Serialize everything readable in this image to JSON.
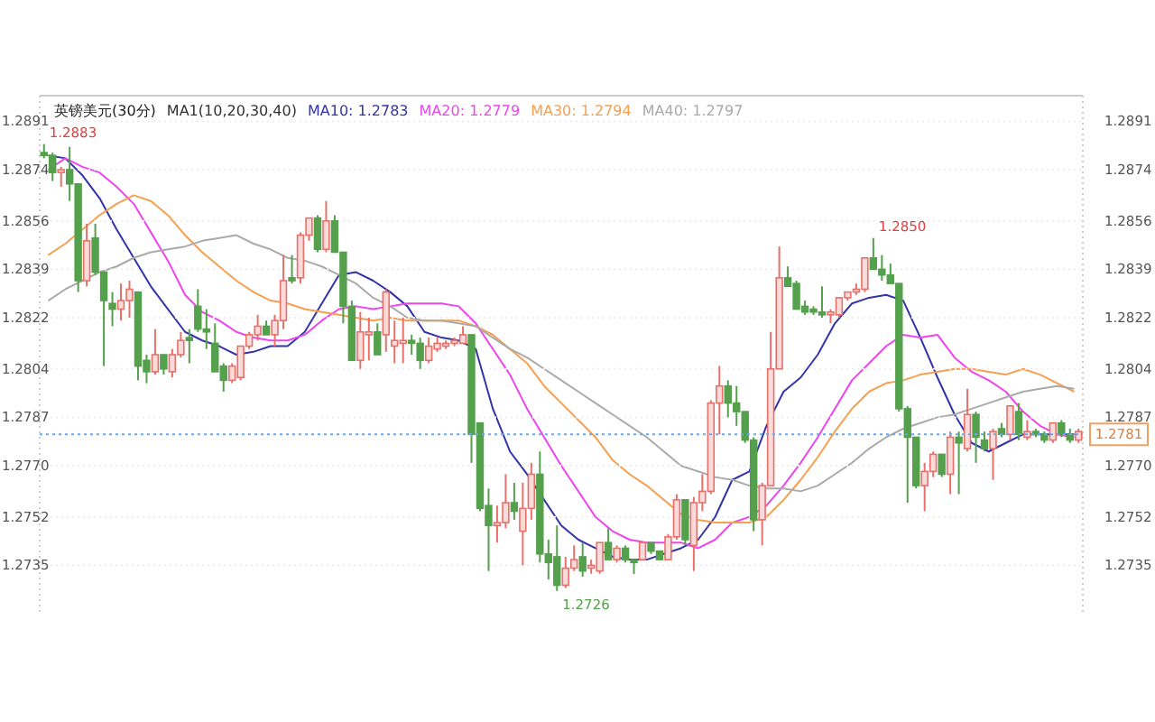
{
  "chart_data": [
    {
      "type": "candlestick",
      "title": "英镑美元(30分)",
      "subtitle": "MA1(10,20,30,40)",
      "grid": "y",
      "tick_labels": "y",
      "ylim": [
        1.2718,
        1.29
      ],
      "yticks": [
        1.2891,
        1.2874,
        1.2856,
        1.2839,
        1.2822,
        1.2804,
        1.2787,
        {
          "value": 1.277,
          "label": "1.2770"
        },
        1.2752,
        1.2735
      ],
      "categories": [
        null,
        null,
        null,
        null,
        null,
        null,
        null,
        null,
        null,
        null,
        null,
        null,
        null,
        null,
        null,
        null,
        null,
        null,
        null,
        null,
        null,
        null,
        null,
        null,
        null,
        null,
        null,
        null,
        null,
        null,
        null,
        null,
        null,
        null,
        null,
        null,
        null,
        null,
        null,
        null,
        null,
        null,
        null,
        null,
        null,
        null,
        null,
        null,
        null,
        null,
        null,
        null,
        null,
        null,
        null,
        null,
        null,
        null,
        null,
        null,
        null,
        null,
        null,
        null,
        null,
        null,
        null,
        null,
        null,
        null,
        null,
        null,
        null,
        null,
        null,
        null,
        null,
        null,
        null,
        null,
        null,
        null,
        null,
        null,
        null,
        null,
        null,
        null,
        null,
        null,
        null,
        null,
        null,
        null,
        null,
        null,
        null,
        null,
        null,
        null,
        null,
        null,
        null,
        null,
        null,
        null,
        null,
        null,
        null,
        null,
        null,
        null,
        null,
        null,
        null,
        null,
        null,
        null,
        null,
        null,
        null,
        null
      ],
      "ohlc": [
        [
          1.288,
          1.2883,
          1.2878,
          1.2879
        ],
        [
          1.2879,
          1.288,
          1.287,
          1.2873
        ],
        [
          1.2873,
          1.2875,
          1.2868,
          1.2874
        ],
        [
          1.2874,
          1.2882,
          1.2863,
          1.2869
        ],
        [
          1.2869,
          1.2869,
          1.2831,
          1.2835
        ],
        [
          1.2835,
          1.2855,
          1.2833,
          1.2849
        ],
        [
          1.285,
          1.2855,
          1.2837,
          1.2838
        ],
        [
          1.2838,
          1.2838,
          1.2805,
          1.2828
        ],
        [
          1.2827,
          1.2831,
          1.2819,
          1.2825
        ],
        [
          1.2825,
          1.2834,
          1.2821,
          1.2828
        ],
        [
          1.2828,
          1.2835,
          1.2822,
          1.2832
        ],
        [
          1.2831,
          1.2831,
          1.28,
          1.2805
        ],
        [
          1.2807,
          1.2809,
          1.2799,
          1.2803
        ],
        [
          1.2803,
          1.2818,
          1.2802,
          1.2809
        ],
        [
          1.2809,
          1.2809,
          1.2802,
          1.2804
        ],
        [
          1.2803,
          1.2811,
          1.2801,
          1.2809
        ],
        [
          1.2809,
          1.2817,
          1.2808,
          1.2814
        ],
        [
          1.2815,
          1.2818,
          1.2806,
          1.2814
        ],
        [
          1.2826,
          1.2832,
          1.2817,
          1.2818
        ],
        [
          1.2818,
          1.2825,
          1.2811,
          1.2817
        ],
        [
          1.2813,
          1.282,
          1.2803,
          1.2803
        ],
        [
          1.2805,
          1.2806,
          1.2796,
          1.28
        ],
        [
          1.28,
          1.2806,
          1.2799,
          1.2805
        ],
        [
          1.2801,
          1.2812,
          1.28,
          1.2812
        ],
        [
          1.2812,
          1.2817,
          1.2811,
          1.2816
        ],
        [
          1.2816,
          1.2823,
          1.2814,
          1.2819
        ],
        [
          1.2819,
          1.2821,
          1.2816,
          1.2816
        ],
        [
          1.2816,
          1.2823,
          1.2812,
          1.2821
        ],
        [
          1.2821,
          1.2844,
          1.2818,
          1.2835
        ],
        [
          1.2836,
          1.2844,
          1.2834,
          1.2835
        ],
        [
          1.2836,
          1.2852,
          1.2834,
          1.2851
        ],
        [
          1.2851,
          1.2857,
          1.2849,
          1.2857
        ],
        [
          1.2857,
          1.2858,
          1.2845,
          1.2846
        ],
        [
          1.2846,
          1.2863,
          1.2845,
          1.2856
        ],
        [
          1.2856,
          1.2858,
          1.2845,
          1.2845
        ],
        [
          1.2845,
          1.2845,
          1.282,
          1.2826
        ],
        [
          1.2826,
          1.2828,
          1.2807,
          1.2807
        ],
        [
          1.2807,
          1.2824,
          1.2804,
          1.2817
        ],
        [
          1.2816,
          1.2822,
          1.2807,
          1.2817
        ],
        [
          1.2817,
          1.282,
          1.2809,
          1.2809
        ],
        [
          1.2816,
          1.2832,
          1.281,
          1.2831
        ],
        [
          1.2812,
          1.2821,
          1.2806,
          1.2814
        ],
        [
          1.2813,
          1.2822,
          1.2806,
          1.2814
        ],
        [
          1.2814,
          1.2816,
          1.2809,
          1.2813
        ],
        [
          1.2813,
          1.2815,
          1.2804,
          1.2807
        ],
        [
          1.2807,
          1.2815,
          1.2806,
          1.2812
        ],
        [
          1.2811,
          1.2815,
          1.281,
          1.2813
        ],
        [
          1.2812,
          1.2814,
          1.2811,
          1.2813
        ],
        [
          1.2813,
          1.2815,
          1.2812,
          1.2814
        ],
        [
          1.2813,
          1.2819,
          1.2813,
          1.2816
        ],
        [
          1.2816,
          1.2816,
          1.2771,
          1.2781
        ],
        [
          1.2785,
          1.2785,
          1.2754,
          1.2755
        ],
        [
          1.2756,
          1.2762,
          1.2733,
          1.2749
        ],
        [
          1.2749,
          1.2756,
          1.2743,
          1.275
        ],
        [
          1.275,
          1.2767,
          1.2748,
          1.2757
        ],
        [
          1.2757,
          1.2764,
          1.2751,
          1.2754
        ],
        [
          1.2747,
          1.2764,
          1.2735,
          1.2755
        ],
        [
          1.2755,
          1.2771,
          1.2751,
          1.2767
        ],
        [
          1.2767,
          1.2775,
          1.2736,
          1.2739
        ],
        [
          1.2739,
          1.2744,
          1.273,
          1.2736
        ],
        [
          1.2738,
          1.2749,
          1.2726,
          1.2728
        ],
        [
          1.2728,
          1.2738,
          1.2727,
          1.2734
        ],
        [
          1.2734,
          1.2742,
          1.2733,
          1.2737
        ],
        [
          1.2738,
          1.2743,
          1.2731,
          1.2733
        ],
        [
          1.2734,
          1.2737,
          1.2732,
          1.2735
        ],
        [
          1.2733,
          1.2743,
          1.2732,
          1.2743
        ],
        [
          1.2743,
          1.2748,
          1.2737,
          1.2737
        ],
        [
          1.2737,
          1.2742,
          1.2736,
          1.2741
        ],
        [
          1.2741,
          1.2742,
          1.2736,
          1.2737
        ],
        [
          1.2737,
          1.2737,
          1.2732,
          1.2736
        ],
        [
          1.2737,
          1.2743,
          1.2737,
          1.2743
        ],
        [
          1.2743,
          1.2743,
          1.2739,
          1.274
        ],
        [
          1.274,
          1.274,
          1.2737,
          1.2737
        ],
        [
          1.2737,
          1.2746,
          1.2737,
          1.2745
        ],
        [
          1.2745,
          1.276,
          1.2744,
          1.2758
        ],
        [
          1.2758,
          1.2758,
          1.2742,
          1.2744
        ],
        [
          1.2742,
          1.2759,
          1.2733,
          1.2757
        ],
        [
          1.2757,
          1.2767,
          1.2754,
          1.2761
        ],
        [
          1.2761,
          1.2793,
          1.276,
          1.2792
        ],
        [
          1.2792,
          1.2805,
          1.2781,
          1.2798
        ],
        [
          1.2798,
          1.28,
          1.2787,
          1.2792
        ],
        [
          1.2792,
          1.2798,
          1.2784,
          1.2789
        ],
        [
          1.2789,
          1.2789,
          1.2778,
          1.2779
        ],
        [
          1.2779,
          1.278,
          1.2747,
          1.2751
        ],
        [
          1.2751,
          1.2764,
          1.2742,
          1.2763
        ],
        [
          1.2763,
          1.2817,
          1.2763,
          1.2804
        ],
        [
          1.2804,
          1.2847,
          1.2804,
          1.2836
        ],
        [
          1.2836,
          1.284,
          1.2833,
          1.2833
        ],
        [
          1.2834,
          1.2835,
          1.2825,
          1.2825
        ],
        [
          1.2826,
          1.2828,
          1.2823,
          1.2824
        ],
        [
          1.2825,
          1.2826,
          1.2823,
          1.2824
        ],
        [
          1.2824,
          1.2833,
          1.2822,
          1.2823
        ],
        [
          1.2823,
          1.2825,
          1.282,
          1.2824
        ],
        [
          1.2823,
          1.2829,
          1.2822,
          1.2829
        ],
        [
          1.2829,
          1.2831,
          1.2828,
          1.2831
        ],
        [
          1.2831,
          1.2834,
          1.283,
          1.2832
        ],
        [
          1.2832,
          1.2843,
          1.2831,
          1.2843
        ],
        [
          1.2843,
          1.285,
          1.2839,
          1.2839
        ],
        [
          1.2839,
          1.2844,
          1.2835,
          1.2837
        ],
        [
          1.2837,
          1.2841,
          1.2834,
          1.2834
        ],
        [
          1.2834,
          1.2834,
          1.2789,
          1.279
        ],
        [
          1.279,
          1.2791,
          1.2757,
          1.278
        ],
        [
          1.278,
          1.278,
          1.2762,
          1.2763
        ],
        [
          1.2763,
          1.2771,
          1.2754,
          1.2768
        ],
        [
          1.2768,
          1.2775,
          1.2766,
          1.2774
        ],
        [
          1.2774,
          1.2774,
          1.2766,
          1.2767
        ],
        [
          1.2767,
          1.2782,
          1.276,
          1.278
        ],
        [
          1.278,
          1.2782,
          1.276,
          1.2778
        ],
        [
          1.2776,
          1.2797,
          1.2775,
          1.2788
        ],
        [
          1.2788,
          1.2789,
          1.2771,
          1.278
        ],
        [
          1.2779,
          1.2782,
          1.2775,
          1.2776
        ],
        [
          1.2776,
          1.2783,
          1.2765,
          1.2782
        ],
        [
          1.2783,
          1.2785,
          1.278,
          1.2781
        ],
        [
          1.2781,
          1.2791,
          1.2779,
          1.2791
        ],
        [
          1.2789,
          1.2792,
          1.2779,
          1.2781
        ],
        [
          1.278,
          1.2786,
          1.2779,
          1.2782
        ],
        [
          1.2782,
          1.2783,
          1.278,
          1.2781
        ],
        [
          1.2781,
          1.2782,
          1.2778,
          1.2779
        ],
        [
          1.2779,
          1.2785,
          1.2778,
          1.2785
        ],
        [
          1.2785,
          1.2786,
          1.278,
          1.2781
        ],
        [
          1.2781,
          1.2783,
          1.2778,
          1.2779
        ],
        [
          1.2779,
          1.2783,
          1.2778,
          1.2782
        ]
      ],
      "ref_lines": [
        {
          "axis": "y",
          "value": 1.2781,
          "label": "1.2781",
          "color": "#66aaee",
          "line_style": "dotted"
        }
      ],
      "annotations": [
        {
          "text": "1.2883",
          "y": 1.2883
        },
        "1.2726",
        "1.2850"
      ]
    },
    {
      "type": "line",
      "tick_labels": "y",
      "ylim": [
        1.2718,
        1.29
      ],
      "categories": [
        null,
        null,
        null,
        null,
        null,
        null,
        null,
        null,
        null,
        null,
        null,
        null,
        null,
        null,
        null,
        null,
        null,
        null,
        null,
        null,
        null,
        null,
        null,
        null,
        null,
        null,
        null,
        null,
        null,
        null,
        null,
        null,
        null,
        null,
        null,
        null,
        null,
        null,
        null,
        null,
        null,
        null,
        null,
        null,
        null,
        null,
        null,
        null,
        null,
        null,
        null,
        null,
        null,
        null,
        null,
        null,
        null,
        null,
        null,
        null,
        null
      ],
      "yticks": [
        1.2891,
        1.2874,
        1.2856,
        1.2839,
        1.2822,
        1.2804,
        1.2787,
        {
          "value": 1.277,
          "label": "1.2770"
        },
        1.2752,
        1.2735
      ],
      "series": [
        {
          "name": "MA10: 1.2783",
          "color": "#3333aa",
          "values": [
            1.2879,
            1.2878,
            1.2872,
            1.2864,
            1.2853,
            1.2843,
            1.2833,
            1.2825,
            1.2817,
            1.2814,
            1.2812,
            1.2809,
            1.281,
            1.2812,
            1.2812,
            1.2817,
            1.2827,
            1.2837,
            1.2838,
            1.2835,
            1.2831,
            1.2826,
            1.2817,
            1.2815,
            1.2814,
            1.2811,
            1.279,
            1.2775,
            1.2767,
            1.2758,
            1.2749,
            1.2744,
            1.2741,
            1.2738,
            1.2737,
            1.2737,
            1.2739,
            1.2741,
            1.2744,
            1.2752,
            1.2765,
            1.2768,
            1.2784,
            1.2796,
            1.2801,
            1.2809,
            1.282,
            1.2827,
            1.2829,
            1.283,
            1.2828,
            1.2815,
            1.2801,
            1.2788,
            1.2778,
            1.2775,
            1.2778,
            1.2781,
            1.2781,
            1.2781,
            1.2781
          ]
        },
        {
          "name": "MA20: 1.2779",
          "color": "#ee44ee",
          "values": [
            1.2874,
            1.2878,
            1.2875,
            1.2873,
            1.2868,
            1.2862,
            1.2852,
            1.2842,
            1.283,
            1.2824,
            1.2821,
            1.2817,
            1.2815,
            1.2814,
            1.2814,
            1.2816,
            1.2821,
            1.2825,
            1.2826,
            1.2825,
            1.2826,
            1.2827,
            1.2827,
            1.2827,
            1.2826,
            1.282,
            1.2811,
            1.2802,
            1.279,
            1.278,
            1.277,
            1.2761,
            1.2752,
            1.2747,
            1.2744,
            1.2743,
            1.2743,
            1.2743,
            1.2741,
            1.2744,
            1.275,
            1.2752,
            1.2756,
            1.2763,
            1.2771,
            1.278,
            1.279,
            1.28,
            1.2806,
            1.2812,
            1.2816,
            1.2815,
            1.2816,
            1.2808,
            1.2803,
            1.28,
            1.2796,
            1.2789,
            1.2784,
            1.2781,
            1.278
          ]
        },
        {
          "name": "MA30: 1.2794",
          "color": "#f5a050",
          "values": [
            1.2844,
            1.2848,
            1.2853,
            1.2858,
            1.2862,
            1.2865,
            1.2863,
            1.2858,
            1.2851,
            1.2845,
            1.284,
            1.2835,
            1.2831,
            1.2828,
            1.2827,
            1.2825,
            1.2824,
            1.2823,
            1.2822,
            1.2821,
            1.2822,
            1.2821,
            1.2821,
            1.2821,
            1.2821,
            1.2819,
            1.2816,
            1.2811,
            1.2806,
            1.2798,
            1.2792,
            1.2786,
            1.278,
            1.2772,
            1.2767,
            1.2763,
            1.2758,
            1.2753,
            1.2751,
            1.275,
            1.275,
            1.275,
            1.2752,
            1.2758,
            1.2765,
            1.2773,
            1.2782,
            1.279,
            1.2796,
            1.2799,
            1.28,
            1.2802,
            1.2803,
            1.2804,
            1.2804,
            1.2803,
            1.2802,
            1.2804,
            1.2802,
            1.2799,
            1.2796
          ]
        },
        {
          "name": "MA40: 1.2797",
          "color": "#aaaaaa",
          "values": [
            1.2828,
            1.2832,
            1.2835,
            1.2838,
            1.284,
            1.2843,
            1.2845,
            1.2846,
            1.2847,
            1.2849,
            1.285,
            1.2851,
            1.2848,
            1.2846,
            1.2843,
            1.2842,
            1.284,
            1.2837,
            1.2834,
            1.2829,
            1.2826,
            1.2822,
            1.2821,
            1.2821,
            1.282,
            1.2819,
            1.2815,
            1.2811,
            1.2808,
            1.2804,
            1.28,
            1.2796,
            1.2792,
            1.2788,
            1.2784,
            1.278,
            1.2775,
            1.277,
            1.2768,
            1.2766,
            1.2765,
            1.2763,
            1.2762,
            1.2762,
            1.2761,
            1.2763,
            1.2767,
            1.2771,
            1.2776,
            1.278,
            1.2783,
            1.2785,
            1.2787,
            1.2788,
            1.279,
            1.2792,
            1.2794,
            1.2796,
            1.2797,
            1.2798,
            1.2797
          ]
        }
      ]
    }
  ]
}
